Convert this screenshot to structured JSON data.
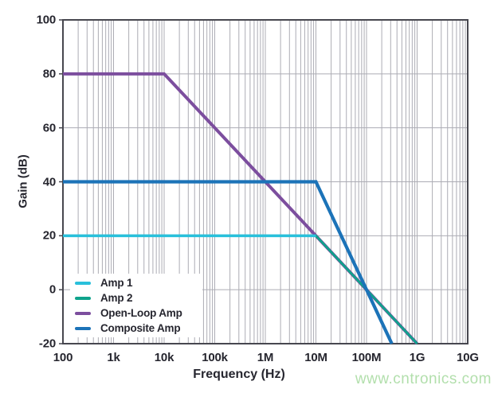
{
  "page": {
    "watermark": "www.cntronics.com"
  },
  "chart_data": {
    "type": "line",
    "title": "",
    "xlabel": "Frequency (Hz)",
    "ylabel": "Gain (dB)",
    "x_scale": "log",
    "x_range_hz": [
      100,
      10000000000
    ],
    "y_range_db": [
      -20,
      100
    ],
    "x_tick_labels": [
      "100",
      "1k",
      "10k",
      "100k",
      "1M",
      "10M",
      "100M",
      "1G",
      "10G"
    ],
    "y_tick_values": [
      100,
      80,
      60,
      40,
      20,
      0,
      -20
    ],
    "y_tick_labels": [
      "100",
      "80",
      "60",
      "40",
      "20",
      "0",
      "-20"
    ],
    "grid": "x-major-and-log-minor-full-height, y-major-only",
    "legend_position": "lower-left",
    "series": [
      {
        "name": "Amp 1",
        "color": "#29C0DB",
        "points_hz_db": [
          [
            100,
            20
          ],
          [
            10000000,
            20
          ]
        ]
      },
      {
        "name": "Amp 2",
        "color": "#0FA38C",
        "points_hz_db": [
          [
            100,
            20
          ],
          [
            10000000,
            20
          ],
          [
            1000000000,
            -20
          ]
        ]
      },
      {
        "name": "Open-Loop Amp",
        "color": "#7C4E9E",
        "points_hz_db": [
          [
            100,
            80
          ],
          [
            10000,
            80
          ],
          [
            1000000000,
            -20
          ]
        ]
      },
      {
        "name": "Composite Amp",
        "color": "#1C73B8",
        "points_hz_db": [
          [
            100,
            40
          ],
          [
            10000000,
            40
          ],
          [
            316227766,
            -20
          ]
        ]
      }
    ],
    "colors": {
      "grid": "#ACACB4",
      "frame": "#47474F",
      "label_text": "#26262F",
      "watermark_text": "#B2DFAC"
    }
  }
}
